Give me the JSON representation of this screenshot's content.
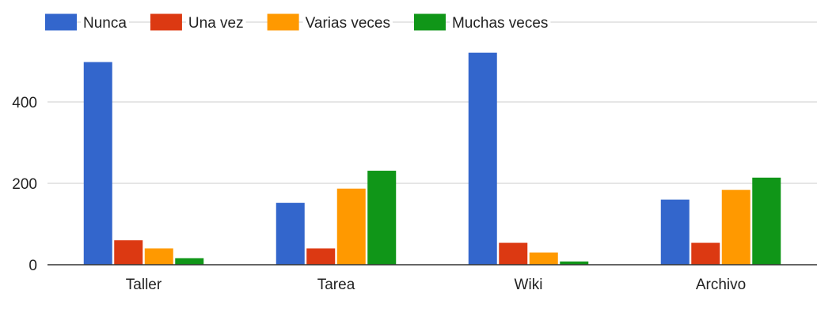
{
  "chart_data": {
    "type": "bar",
    "title": "",
    "xlabel": "",
    "ylabel": "",
    "categories": [
      "Taller",
      "Tarea",
      "Wiki",
      "Archivo"
    ],
    "series": [
      {
        "name": "Nunca",
        "color": "#3366cc",
        "values": [
          498,
          152,
          521,
          160
        ]
      },
      {
        "name": "Una vez",
        "color": "#dc3912",
        "values": [
          60,
          40,
          54,
          54
        ]
      },
      {
        "name": "Varias veces",
        "color": "#ff9900",
        "values": [
          40,
          187,
          30,
          184
        ]
      },
      {
        "name": "Muchas veces",
        "color": "#109618",
        "values": [
          16,
          231,
          8,
          214
        ]
      }
    ],
    "ylim": [
      0,
      560
    ],
    "yticks": [
      0,
      200,
      400
    ],
    "grid": true,
    "legend_position": "top"
  }
}
